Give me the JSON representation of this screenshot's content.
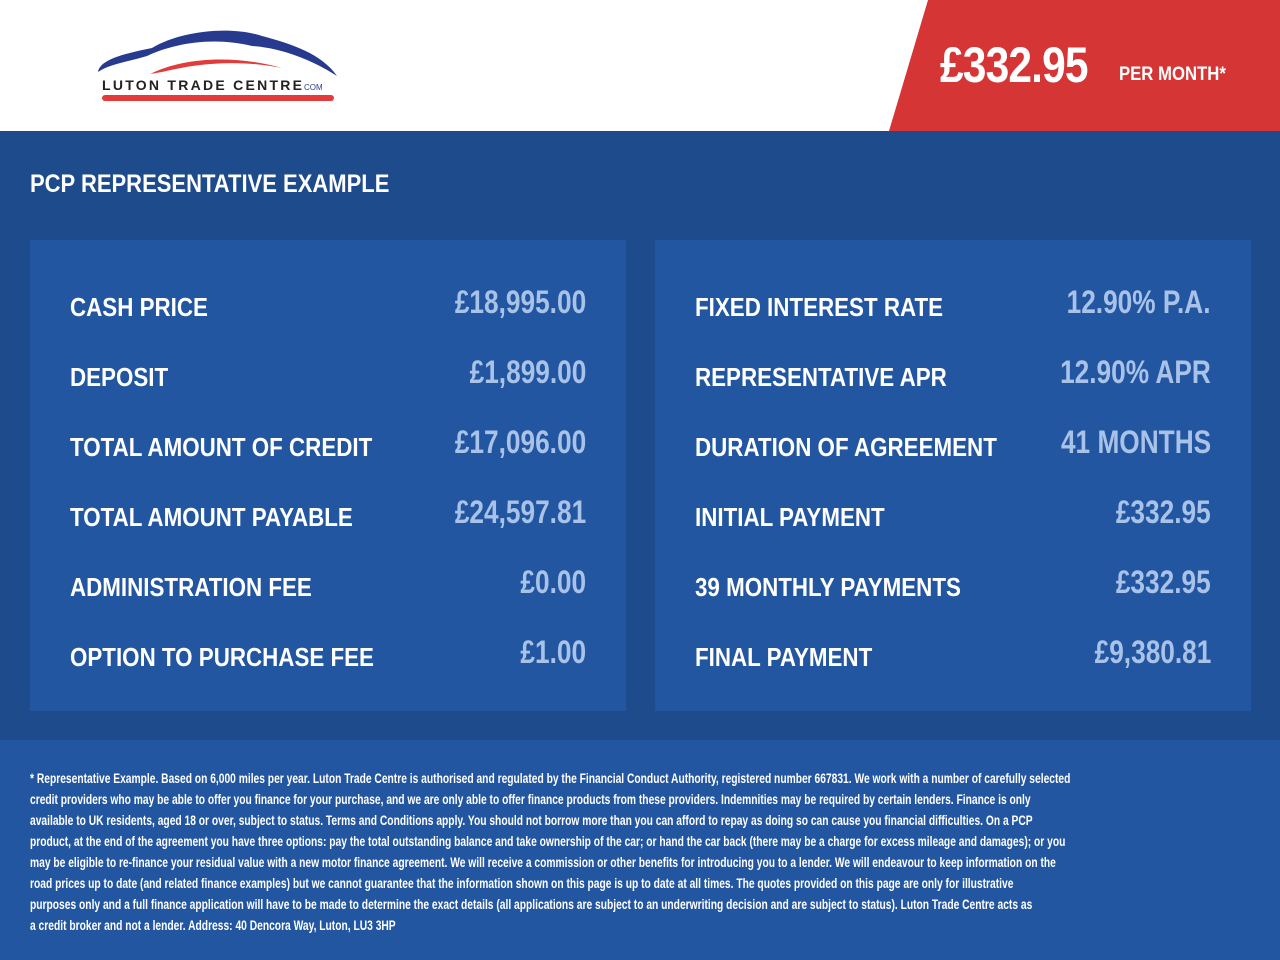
{
  "header": {
    "logo_text": "LUTON TRADE CENTRE.COM",
    "monthly_price": "£332.95",
    "per_month_label": "PER MONTH*"
  },
  "section_title": "PCP REPRESENTATIVE EXAMPLE",
  "left_panel": [
    {
      "label": "CASH PRICE",
      "value": "£18,995.00"
    },
    {
      "label": "DEPOSIT",
      "value": "£1,899.00"
    },
    {
      "label": "TOTAL AMOUNT OF CREDIT",
      "value": "£17,096.00"
    },
    {
      "label": "TOTAL AMOUNT PAYABLE",
      "value": "£24,597.81"
    },
    {
      "label": "ADMINISTRATION FEE",
      "value": "£0.00"
    },
    {
      "label": "OPTION TO PURCHASE FEE",
      "value": "£1.00"
    }
  ],
  "right_panel": [
    {
      "label": "FIXED INTEREST RATE",
      "value": "12.90% P.A."
    },
    {
      "label": "REPRESENTATIVE APR",
      "value": "12.90% APR"
    },
    {
      "label": "DURATION OF AGREEMENT",
      "value": "41 MONTHS"
    },
    {
      "label": "INITIAL PAYMENT",
      "value": "£332.95"
    },
    {
      "label": "39 MONTHLY PAYMENTS",
      "value": "£332.95"
    },
    {
      "label": "FINAL PAYMENT",
      "value": "£9,380.81"
    }
  ],
  "disclaimer_lines": [
    "* Representative Example. Based on 6,000 miles per year. Luton Trade Centre is authorised and regulated by the Financial Conduct Authority, registered number 667831. We work with a number of carefully selected",
    "credit providers who may be able to offer you finance for your purchase, and we are only able to offer finance products from these providers. Indemnities may be required by certain lenders. Finance is only",
    "available to UK residents, aged 18 or over, subject to status. Terms and Conditions apply. You should not borrow more than you can afford to repay as doing so can cause you financial difficulties. On a PCP",
    "product, at the end of the agreement you have three options: pay the total outstanding balance and take ownership of the car; or hand the car back (there may be a charge for excess mileage and damages); or you",
    "may be eligible to re-finance your residual value with a new motor finance agreement. We will receive a commission or other benefits for introducing you to a lender. We will endeavour to keep information on the",
    "road prices up to date (and related finance examples) but we cannot guarantee that the information shown on this page is up to date at all times. The quotes provided on this page are only for illustrative",
    "purposes only and a full finance application will have to be made to determine the exact details (all applications are subject to an underwriting decision and are subject to status). Luton Trade Centre acts as",
    "a credit broker and not a lender. Address: 40 Dencora Way, Luton, LU3 3HP"
  ],
  "colors": {
    "brand_red": "#d63536",
    "brand_blue": "#1e4b8b",
    "panel_blue": "#2356a1",
    "value_text": "#a9c2e8"
  }
}
